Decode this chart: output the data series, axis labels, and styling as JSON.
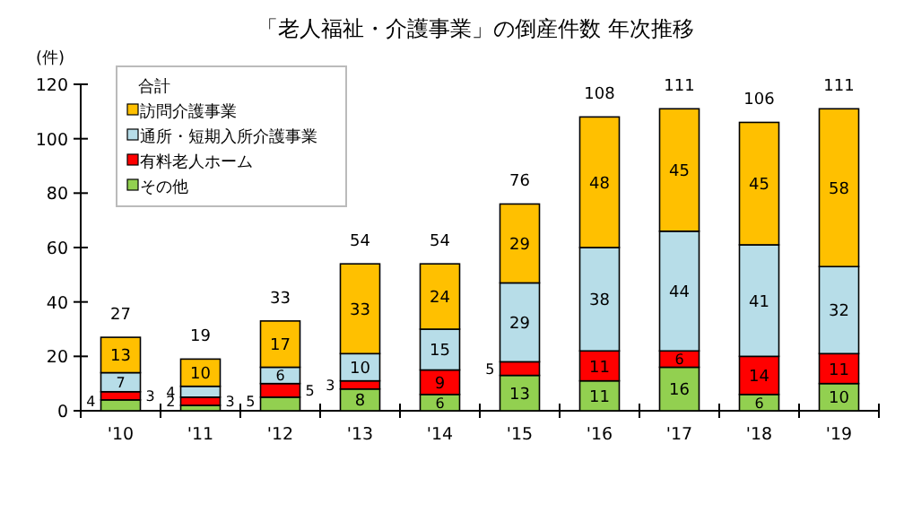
{
  "chart_data": {
    "type": "bar",
    "stacked": true,
    "title": "「老人福祉・介護事業」の倒産件数 年次推移",
    "ylabel": "(件)",
    "legend_title": "合計",
    "categories": [
      "'10",
      "'11",
      "'12",
      "'13",
      "'14",
      "'15",
      "'16",
      "'17",
      "'18",
      "'19"
    ],
    "series": [
      {
        "name": "その他",
        "color": "#92d050",
        "values": [
          4,
          2,
          5,
          8,
          6,
          13,
          11,
          16,
          6,
          10
        ]
      },
      {
        "name": "有料老人ホーム",
        "color": "#ff0000",
        "values": [
          3,
          3,
          5,
          3,
          9,
          5,
          11,
          6,
          14,
          11
        ]
      },
      {
        "name": "通所・短期入所介護事業",
        "color": "#b7dde8",
        "values": [
          7,
          4,
          6,
          10,
          15,
          29,
          38,
          44,
          41,
          32
        ]
      },
      {
        "name": "訪問介護事業",
        "color": "#ffc000",
        "values": [
          13,
          10,
          17,
          33,
          24,
          29,
          48,
          45,
          45,
          58
        ]
      }
    ],
    "totals": [
      "27",
      "19",
      "33",
      "54",
      "54",
      "76",
      "108",
      "111",
      "106",
      "111"
    ],
    "ylim": [
      0,
      120
    ],
    "yticks": [
      0,
      20,
      40,
      60,
      80,
      100,
      120
    ],
    "data_labels": true,
    "legend": "top left",
    "grid": false
  }
}
